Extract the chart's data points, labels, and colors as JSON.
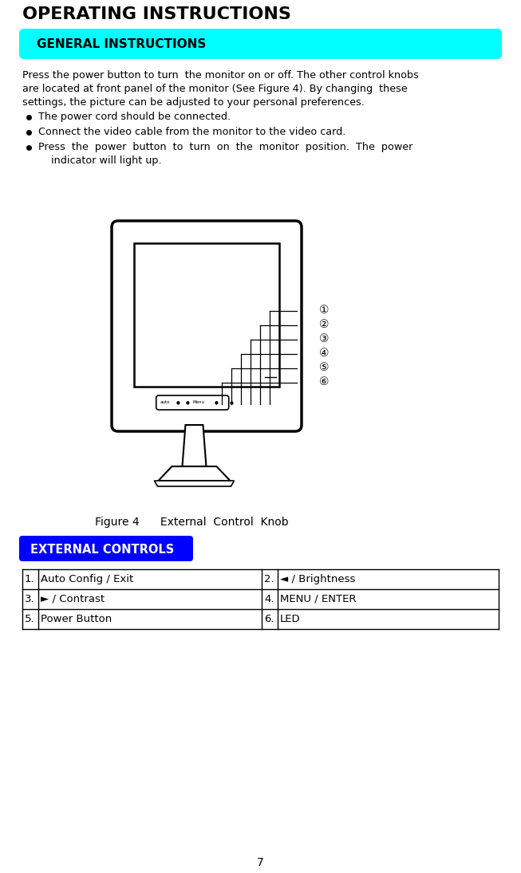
{
  "title": "OPERATING INSTRUCTIONS",
  "general_header": "GENERAL INSTRUCTIONS",
  "general_header_bg": "#00FFFF",
  "external_header": "EXTERNAL CONTROLS",
  "external_header_bg": "#0000FF",
  "external_header_fg": "#FFFFFF",
  "figure_caption": "Figure 4      External  Control  Knob",
  "table_data": [
    [
      "1.",
      "Auto Config / Exit",
      "2.",
      "◄ / Brightness"
    ],
    [
      "3.",
      "► / Contrast",
      "4.",
      "MENU / ENTER"
    ],
    [
      "5.",
      "Power Button",
      "6.",
      "LED"
    ]
  ],
  "page_number": "7",
  "bg_color": "#FFFFFF",
  "text_color": "#000000"
}
